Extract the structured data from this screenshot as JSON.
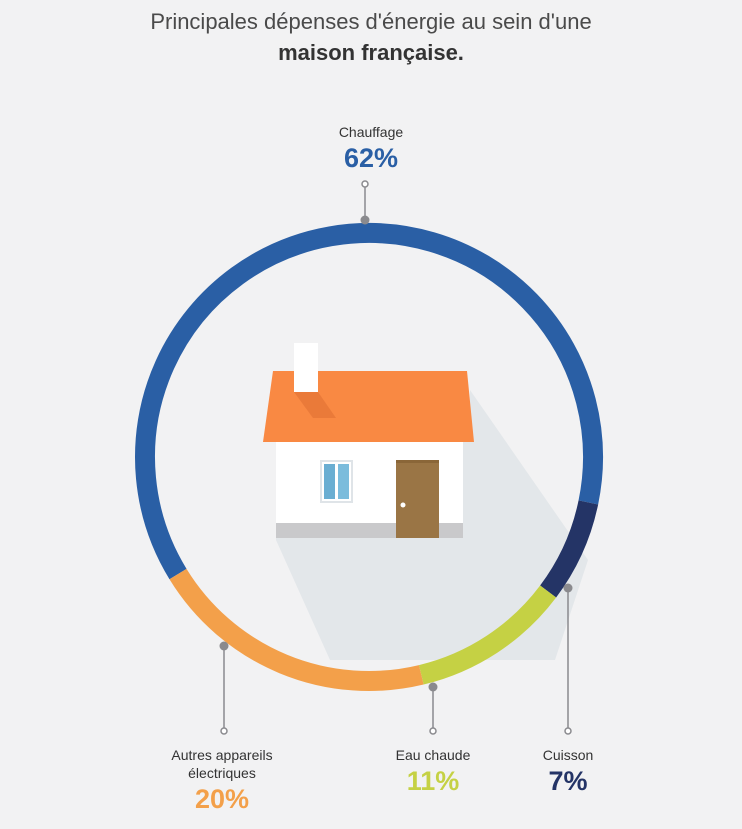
{
  "title": {
    "line1": "Principales dépenses d'énergie au sein d'une",
    "line2": "maison française."
  },
  "chart_data": {
    "type": "pie",
    "title": "Principales dépenses d'énergie au sein d'une maison française.",
    "unit": "%",
    "series": [
      {
        "name": "Chauffage",
        "value": 62,
        "label": "62%",
        "color": "#2a5fa5"
      },
      {
        "name": "Cuisson",
        "value": 7,
        "label": "7%",
        "color": "#243466"
      },
      {
        "name": "Eau chaude",
        "value": 11,
        "label": "11%",
        "color": "#c5d144"
      },
      {
        "name": "Autres appareils électriques",
        "value": 20,
        "label": "20%",
        "color": "#f3a04a"
      }
    ]
  },
  "labels": {
    "chauffage": {
      "name": "Chauffage",
      "pct": "62%"
    },
    "cuisson": {
      "name": "Cuisson",
      "pct": "7%"
    },
    "eau": {
      "name": "Eau chaude",
      "pct": "11%"
    },
    "autres": {
      "name_line1": "Autres appareils",
      "name_line2": "électriques",
      "pct": "20%"
    }
  },
  "colors": {
    "background": "#f2f2f3",
    "roof": "#f98943",
    "wall": "#ffffff",
    "door": "#9a7545",
    "window": "#6aaed2",
    "shadow": "#e3e7ea",
    "leader": "#8a8a8e"
  },
  "icons": [
    "house-illustration"
  ]
}
